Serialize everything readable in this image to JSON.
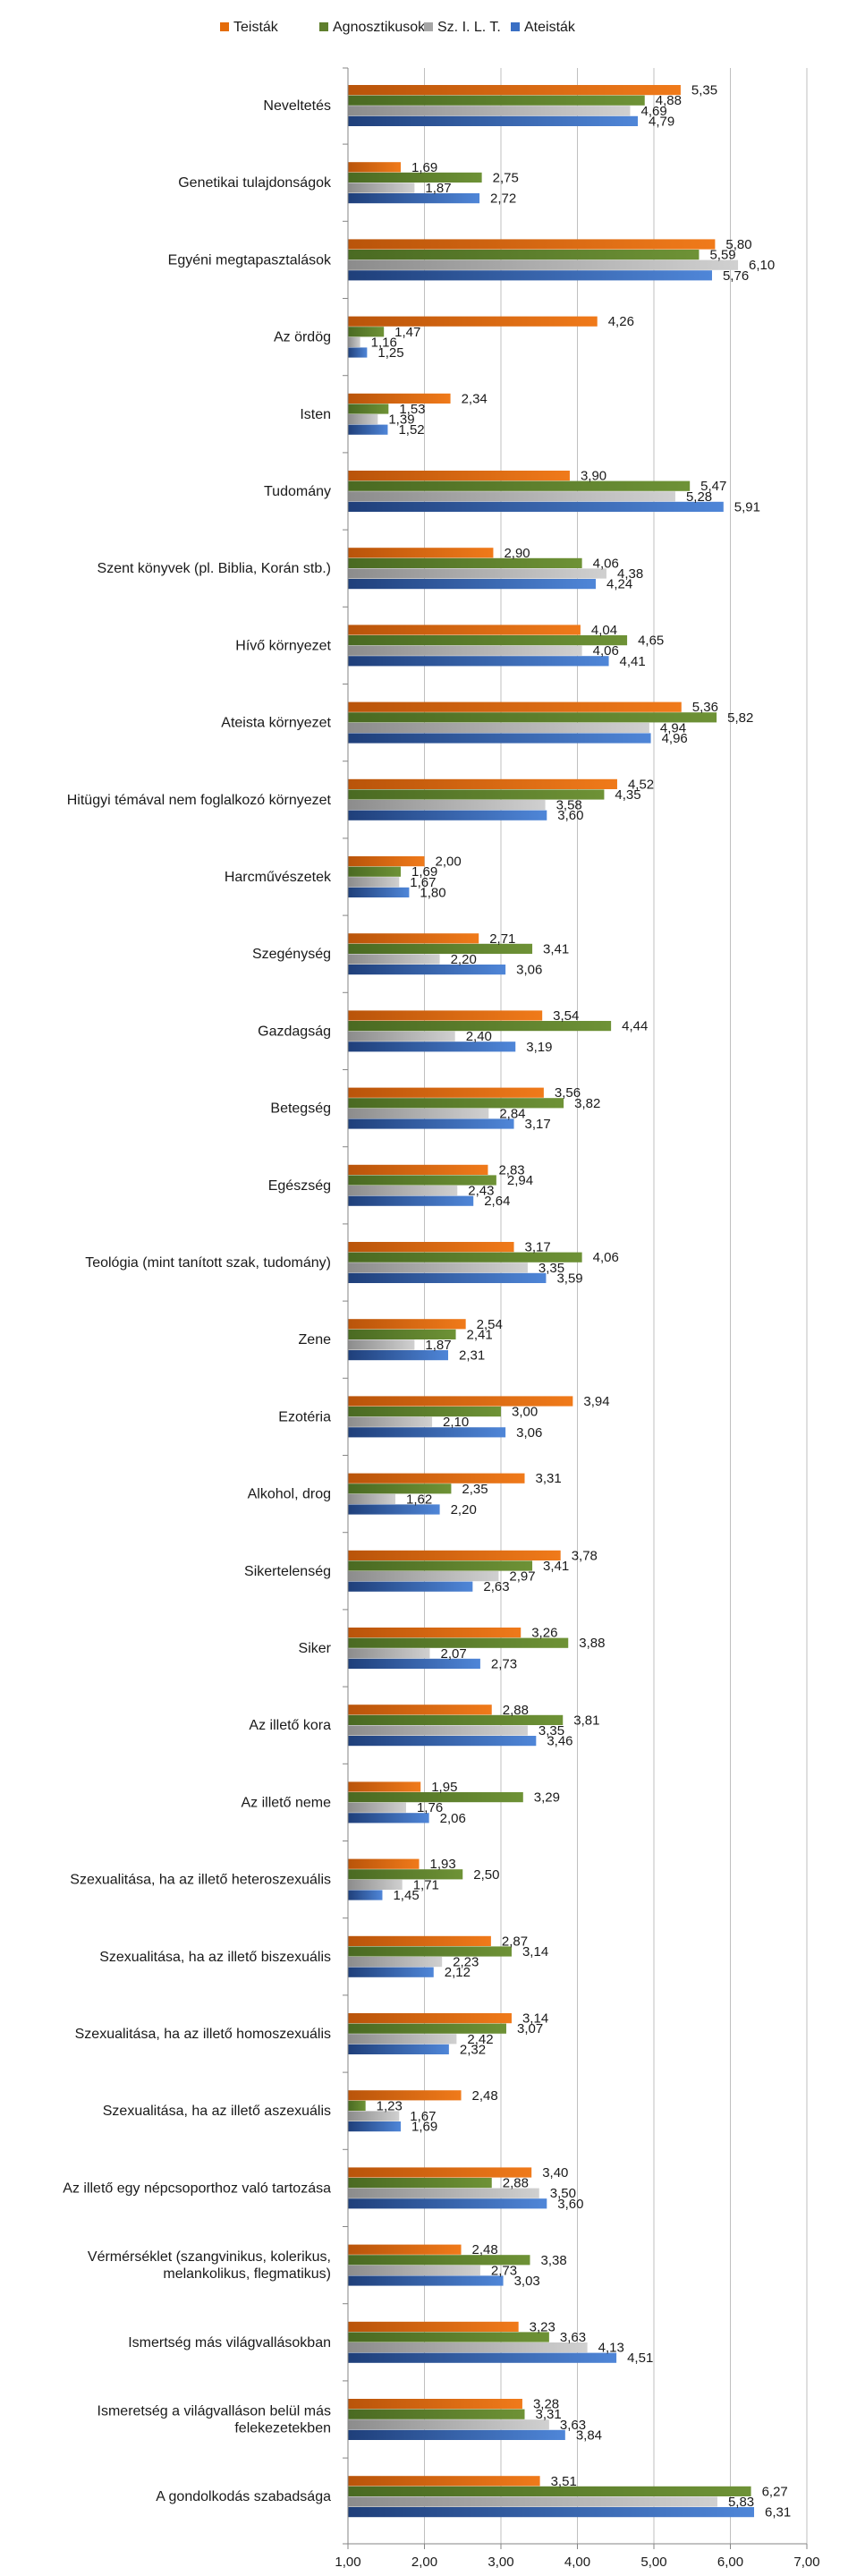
{
  "chart_data": {
    "type": "bar",
    "orientation": "horizontal",
    "title": "",
    "xlabel": "",
    "ylabel": "",
    "xlim": [
      1,
      7
    ],
    "ticks": [
      "1,00",
      "2,00",
      "3,00",
      "4,00",
      "5,00",
      "6,00",
      "7,00"
    ],
    "tick_values": [
      1,
      2,
      3,
      4,
      5,
      6,
      7
    ],
    "grid": true,
    "legend_position": "top",
    "categories": [
      "Neveltetés",
      "Genetikai tulajdonságok",
      "Egyéni megtapasztalások",
      "Az ördög",
      "Isten",
      "Tudomány",
      "Szent könyvek (pl. Biblia, Korán stb.)",
      "Hívő környezet",
      "Ateista környezet",
      "Hitügyi témával nem foglalkozó környezet",
      "Harcművészetek",
      "Szegénység",
      "Gazdagság",
      "Betegség",
      "Egészség",
      "Teológia (mint tanított szak, tudomány)",
      "Zene",
      "Ezotéria",
      "Alkohol, drog",
      "Sikertelenség",
      "Siker",
      "Az illető kora",
      "Az illető neme",
      "Szexualitása, ha az illető heteroszexuális",
      "Szexualitása, ha az illető biszexuális",
      "Szexualitása, ha az illető homoszexuális",
      "Szexualitása, ha az illető aszexuális",
      "Az illető egy népcsoporthoz való tartozása",
      [
        "Vérmérséklet (szangvinikus, kolerikus,",
        "melankolikus, flegmatikus)"
      ],
      "Ismertség más világvallásokban",
      [
        "Ismeretség a világvalláson belül más",
        "felekezetekben"
      ],
      "A gondolkodás szabadsága"
    ],
    "series": [
      {
        "name": "Teisták",
        "color": "#E46C0A",
        "values": [
          5.35,
          1.69,
          5.8,
          4.26,
          2.34,
          3.9,
          2.9,
          4.04,
          5.36,
          4.52,
          2.0,
          2.71,
          3.54,
          3.56,
          2.83,
          3.17,
          2.54,
          3.94,
          3.31,
          3.78,
          3.26,
          2.88,
          1.95,
          1.93,
          2.87,
          3.14,
          2.48,
          3.4,
          2.48,
          3.23,
          3.28,
          3.51
        ],
        "labels": [
          "5,35",
          "1,69",
          "5,80",
          "4,26",
          "2,34",
          "3,90",
          "2,90",
          "4,04",
          "5,36",
          "4,52",
          "2,00",
          "2,71",
          "3,54",
          "3,56",
          "2,83",
          "3,17",
          "2,54",
          "3,94",
          "3,31",
          "3,78",
          "3,26",
          "2,88",
          "1,95",
          "1,93",
          "2,87",
          "3,14",
          "2,48",
          "3,40",
          "2,48",
          "3,23",
          "3,28",
          "3,51"
        ]
      },
      {
        "name": "Agnosztikusok",
        "color": "#5F7F2D",
        "values": [
          4.88,
          2.75,
          5.59,
          1.47,
          1.53,
          5.47,
          4.06,
          4.65,
          5.82,
          4.35,
          1.69,
          3.41,
          4.44,
          3.82,
          2.94,
          4.06,
          2.41,
          3.0,
          2.35,
          3.41,
          3.88,
          3.81,
          3.29,
          2.5,
          3.14,
          3.07,
          1.23,
          2.88,
          3.38,
          3.63,
          3.31,
          6.27
        ],
        "labels": [
          "4,88",
          "2,75",
          "5,59",
          "1,47",
          "1,53",
          "5,47",
          "4,06",
          "4,65",
          "5,82",
          "4,35",
          "1,69",
          "3,41",
          "4,44",
          "3,82",
          "2,94",
          "4,06",
          "2,41",
          "3,00",
          "2,35",
          "3,41",
          "3,88",
          "3,81",
          "3,29",
          "2,50",
          "3,14",
          "3,07",
          "1,23",
          "2,88",
          "3,38",
          "3,63",
          "3,31",
          "6,27"
        ]
      },
      {
        "name": "Sz. I. L. T.",
        "color": "#A6A6A6",
        "values": [
          4.69,
          1.87,
          6.1,
          1.16,
          1.39,
          5.28,
          4.38,
          4.06,
          4.94,
          3.58,
          1.67,
          2.2,
          2.4,
          2.84,
          2.43,
          3.35,
          1.87,
          2.1,
          1.62,
          2.97,
          2.07,
          3.35,
          1.76,
          1.71,
          2.23,
          2.42,
          1.67,
          3.5,
          2.73,
          4.13,
          3.63,
          5.83
        ],
        "labels": [
          "4,69",
          "1,87",
          "6,10",
          "1,16",
          "1,39",
          "5,28",
          "4,38",
          "4,06",
          "4,94",
          "3,58",
          "1,67",
          "2,20",
          "2,40",
          "2,84",
          "2,43",
          "3,35",
          "1,87",
          "2,10",
          "1,62",
          "2,97",
          "2,07",
          "3,35",
          "1,76",
          "1,71",
          "2,23",
          "2,42",
          "1,67",
          "3,50",
          "2,73",
          "4,13",
          "3,63",
          "5,83"
        ]
      },
      {
        "name": "Ateisták",
        "color": "#3A6FC4",
        "values": [
          4.79,
          2.72,
          5.76,
          1.25,
          1.52,
          5.91,
          4.24,
          4.41,
          4.96,
          3.6,
          1.8,
          3.06,
          3.19,
          3.17,
          2.64,
          3.59,
          2.31,
          3.06,
          2.2,
          2.63,
          2.73,
          3.46,
          2.06,
          1.45,
          2.12,
          2.32,
          1.69,
          3.6,
          3.03,
          4.51,
          3.84,
          6.31
        ],
        "labels": [
          "4,79",
          "2,72",
          "5,76",
          "1,25",
          "1,52",
          "5,91",
          "4,24",
          "4,41",
          "4,96",
          "3,60",
          "1,80",
          "3,06",
          "3,19",
          "3,17",
          "2,64",
          "3,59",
          "2,31",
          "3,06",
          "2,20",
          "2,63",
          "2,73",
          "3,46",
          "2,06",
          "1,45",
          "2,12",
          "2,32",
          "1,69",
          "3,60",
          "3,03",
          "4,51",
          "3,84",
          "6,31"
        ]
      }
    ]
  }
}
